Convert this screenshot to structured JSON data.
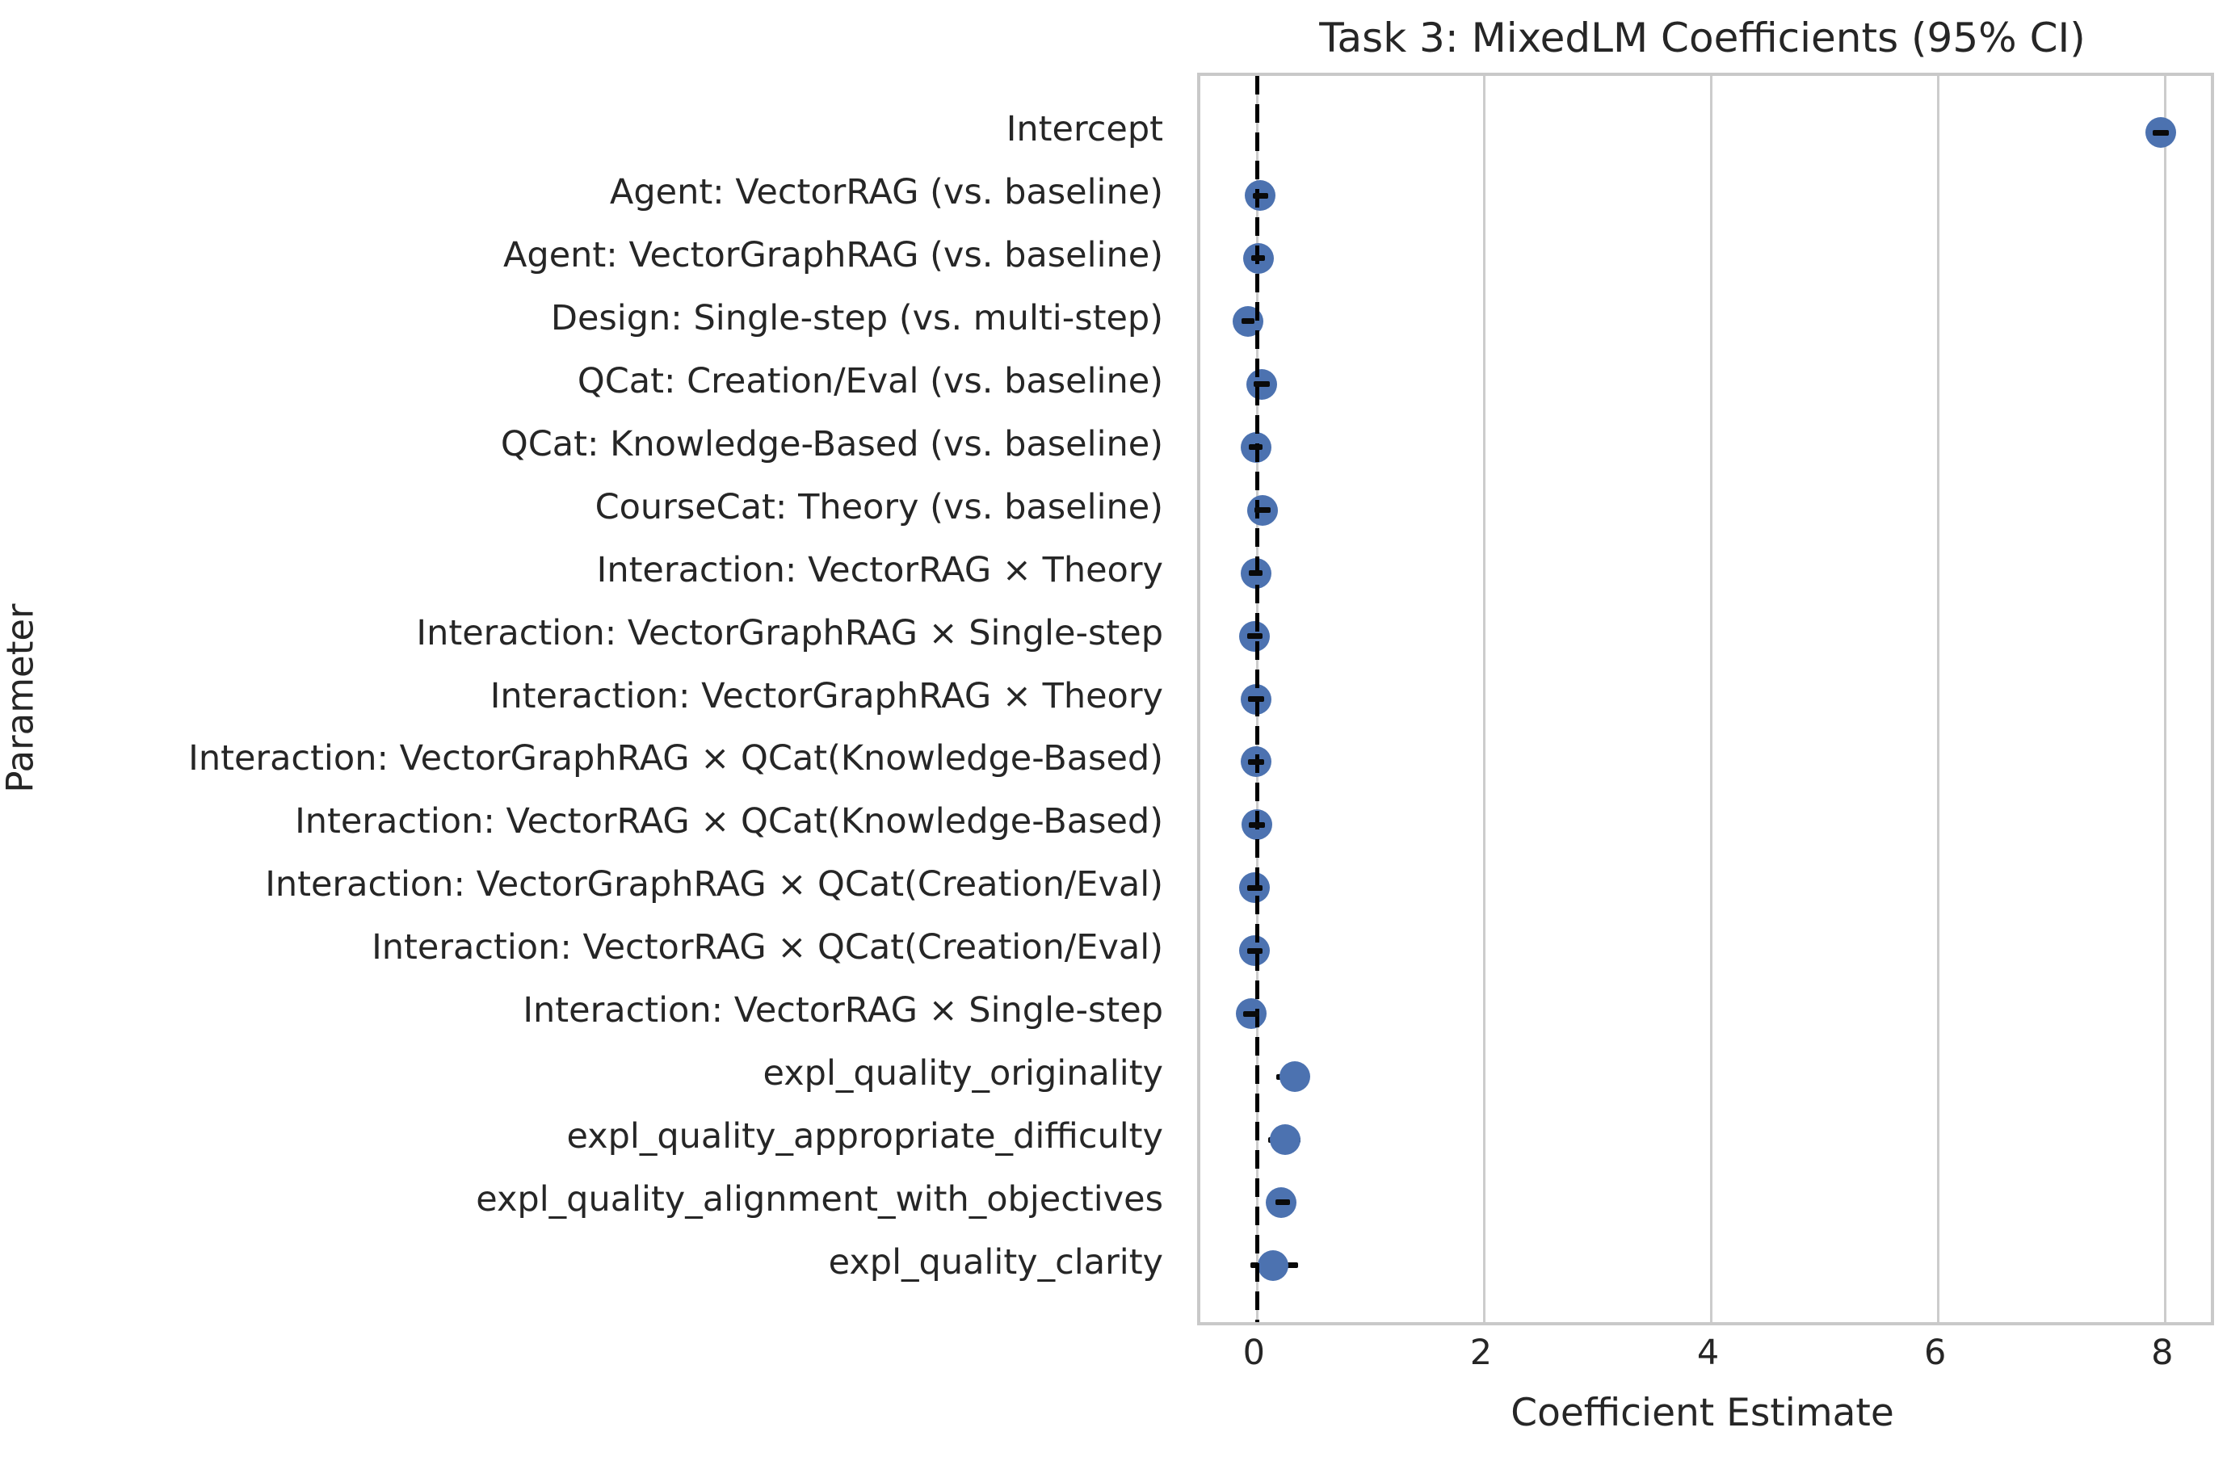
{
  "chart_data": {
    "type": "scatter",
    "subtype": "coefficient-dot-plot-with-error-bars",
    "title": "Task 3: MixedLM Coefficients (95% CI)",
    "xlabel": "Coefficient Estimate",
    "ylabel": "Parameter",
    "x_ticks": [
      0,
      2,
      4,
      6,
      8
    ],
    "xlim": [
      -0.5,
      8.4
    ],
    "zero_reference_line_x": 0,
    "grid": "vertical-only",
    "legend": "none",
    "ci_level": "95%",
    "points": [
      {
        "label": "Intercept",
        "estimate": 7.96,
        "ci": [
          7.89,
          8.03
        ],
        "bar_on_top": true
      },
      {
        "label": "Agent: VectorRAG (vs. baseline)",
        "estimate": 0.03,
        "ci": [
          -0.04,
          0.1
        ],
        "bar_on_top": true
      },
      {
        "label": "Agent: VectorGraphRAG (vs. baseline)",
        "estimate": 0.01,
        "ci": [
          -0.05,
          0.07
        ],
        "bar_on_top": true
      },
      {
        "label": "Design: Single-step (vs. multi-step)",
        "estimate": -0.08,
        "ci": [
          -0.14,
          -0.02
        ],
        "bar_on_top": true
      },
      {
        "label": "QCat: Creation/Eval (vs. baseline)",
        "estimate": 0.04,
        "ci": [
          -0.03,
          0.11
        ],
        "bar_on_top": true
      },
      {
        "label": "QCat: Knowledge-Based (vs. baseline)",
        "estimate": -0.01,
        "ci": [
          -0.07,
          0.05
        ],
        "bar_on_top": true
      },
      {
        "label": "CourseCat: Theory (vs. baseline)",
        "estimate": 0.05,
        "ci": [
          -0.02,
          0.12
        ],
        "bar_on_top": true
      },
      {
        "label": "Interaction: VectorRAG × Theory",
        "estimate": -0.01,
        "ci": [
          -0.07,
          0.05
        ],
        "bar_on_top": true
      },
      {
        "label": "Interaction: VectorGraphRAG × Single-step",
        "estimate": -0.02,
        "ci": [
          -0.09,
          0.05
        ],
        "bar_on_top": true
      },
      {
        "label": "Interaction: VectorGraphRAG × Theory",
        "estimate": -0.01,
        "ci": [
          -0.08,
          0.06
        ],
        "bar_on_top": true
      },
      {
        "label": "Interaction: VectorGraphRAG × QCat(Knowledge-Based)",
        "estimate": -0.01,
        "ci": [
          -0.08,
          0.06
        ],
        "bar_on_top": true
      },
      {
        "label": "Interaction: VectorRAG × QCat(Knowledge-Based)",
        "estimate": 0.0,
        "ci": [
          -0.07,
          0.07
        ],
        "bar_on_top": true
      },
      {
        "label": "Interaction: VectorGraphRAG × QCat(Creation/Eval)",
        "estimate": -0.02,
        "ci": [
          -0.09,
          0.05
        ],
        "bar_on_top": true
      },
      {
        "label": "Interaction: VectorRAG × QCat(Creation/Eval)",
        "estimate": -0.02,
        "ci": [
          -0.09,
          0.05
        ],
        "bar_on_top": true
      },
      {
        "label": "Interaction: VectorRAG × Single-step",
        "estimate": -0.05,
        "ci": [
          -0.12,
          0.02
        ],
        "bar_on_top": true
      },
      {
        "label": "expl_quality_originality",
        "estimate": 0.33,
        "ci": [
          0.17,
          0.46
        ],
        "bar_on_top": false
      },
      {
        "label": "expl_quality_appropriate_difficulty",
        "estimate": 0.25,
        "ci": [
          0.1,
          0.38
        ],
        "bar_on_top": false
      },
      {
        "label": "expl_quality_alignment_with_objectives",
        "estimate": 0.21,
        "ci": [
          0.16,
          0.29
        ],
        "bar_on_top": true
      },
      {
        "label": "expl_quality_clarity",
        "estimate": 0.14,
        "ci": [
          -0.06,
          0.36
        ],
        "bar_on_top": false
      }
    ],
    "colors": {
      "dot": "#4C72B0",
      "error_bar": "#0a0a0a",
      "zero_line": "#000000",
      "gridline": "#cccccc",
      "spine": "#c9c9c9",
      "text": "#262626",
      "background": "#ffffff"
    }
  }
}
